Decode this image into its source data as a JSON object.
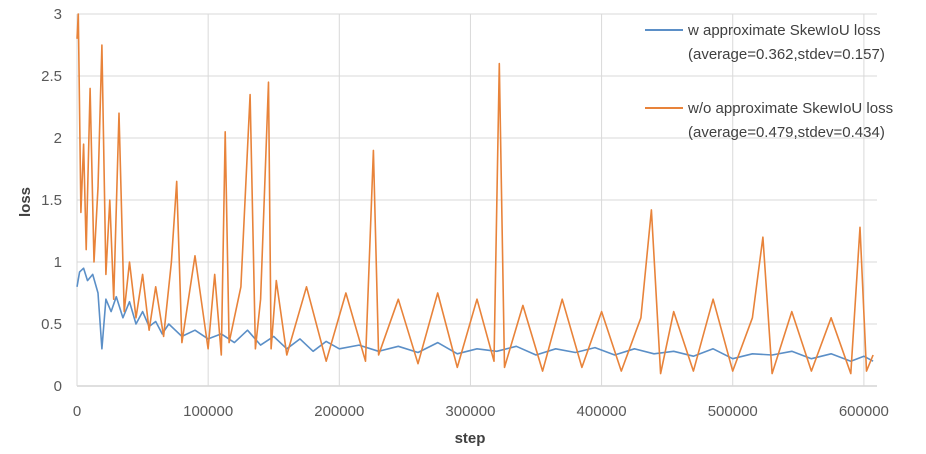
{
  "chart_data": {
    "type": "line",
    "xlabel": "step",
    "ylabel": "loss",
    "xlim": [
      0,
      610000
    ],
    "ylim": [
      0,
      3
    ],
    "x_ticks": [
      0,
      100000,
      200000,
      300000,
      400000,
      500000,
      600000
    ],
    "x_tick_labels": [
      "0",
      "100000",
      "200000",
      "300000",
      "400000",
      "500000",
      "600000"
    ],
    "y_ticks": [
      0,
      0.5,
      1,
      1.5,
      2,
      2.5,
      3
    ],
    "y_tick_labels": [
      "0",
      "0.5",
      "1",
      "1.5",
      "2",
      "2.5",
      "3"
    ],
    "grid": true,
    "legend_position": "top-right",
    "series": [
      {
        "name": "w approximate SkewIoU loss",
        "stats": "(average=0.362,stdev=0.157)",
        "color": "#5B8FC7",
        "x": [
          0,
          2000,
          5000,
          8000,
          12000,
          16000,
          19000,
          22000,
          26000,
          30000,
          35000,
          40000,
          45000,
          50000,
          55000,
          60000,
          65000,
          70000,
          80000,
          90000,
          100000,
          110000,
          120000,
          130000,
          140000,
          150000,
          160000,
          170000,
          180000,
          190000,
          200000,
          215000,
          230000,
          245000,
          260000,
          275000,
          290000,
          305000,
          320000,
          335000,
          350000,
          365000,
          380000,
          395000,
          410000,
          425000,
          440000,
          455000,
          470000,
          485000,
          500000,
          515000,
          530000,
          545000,
          560000,
          575000,
          590000,
          600000,
          607000
        ],
        "values": [
          0.8,
          0.92,
          0.95,
          0.85,
          0.9,
          0.75,
          0.3,
          0.7,
          0.6,
          0.72,
          0.55,
          0.68,
          0.5,
          0.6,
          0.48,
          0.52,
          0.42,
          0.5,
          0.4,
          0.45,
          0.38,
          0.42,
          0.35,
          0.45,
          0.33,
          0.4,
          0.3,
          0.38,
          0.28,
          0.36,
          0.3,
          0.33,
          0.28,
          0.32,
          0.27,
          0.35,
          0.26,
          0.3,
          0.28,
          0.32,
          0.25,
          0.3,
          0.27,
          0.31,
          0.25,
          0.3,
          0.26,
          0.28,
          0.24,
          0.3,
          0.22,
          0.26,
          0.25,
          0.28,
          0.22,
          0.26,
          0.2,
          0.24,
          0.2
        ]
      },
      {
        "name": "w/o approximate SkewIoU loss",
        "stats": "(average=0.479,stdev=0.434)",
        "color": "#E8833A",
        "x": [
          0,
          1000,
          3000,
          5000,
          7000,
          10000,
          13000,
          16000,
          19000,
          22000,
          25000,
          28000,
          32000,
          36000,
          40000,
          45000,
          50000,
          55000,
          60000,
          66000,
          72000,
          76000,
          80000,
          90000,
          100000,
          105000,
          110000,
          113000,
          116000,
          125000,
          132000,
          136000,
          140000,
          146000,
          148000,
          152000,
          160000,
          175000,
          190000,
          205000,
          220000,
          226000,
          230000,
          245000,
          260000,
          275000,
          290000,
          305000,
          318000,
          322000,
          326000,
          340000,
          355000,
          370000,
          385000,
          400000,
          415000,
          430000,
          438000,
          445000,
          455000,
          470000,
          485000,
          500000,
          515000,
          523000,
          530000,
          545000,
          560000,
          575000,
          590000,
          597000,
          602000,
          607000
        ],
        "values": [
          2.8,
          3.0,
          1.4,
          1.95,
          1.1,
          2.4,
          1.0,
          1.6,
          2.75,
          0.9,
          1.5,
          0.7,
          2.2,
          0.6,
          1.0,
          0.55,
          0.9,
          0.45,
          0.8,
          0.4,
          1.0,
          1.65,
          0.35,
          1.05,
          0.3,
          0.9,
          0.25,
          2.05,
          0.35,
          0.8,
          2.35,
          0.3,
          0.7,
          2.45,
          0.3,
          0.85,
          0.25,
          0.8,
          0.2,
          0.75,
          0.2,
          1.9,
          0.25,
          0.7,
          0.18,
          0.75,
          0.15,
          0.7,
          0.2,
          2.6,
          0.15,
          0.65,
          0.12,
          0.7,
          0.15,
          0.6,
          0.12,
          0.55,
          1.42,
          0.1,
          0.6,
          0.12,
          0.7,
          0.12,
          0.55,
          1.2,
          0.1,
          0.6,
          0.12,
          0.55,
          0.1,
          1.28,
          0.12,
          0.25
        ]
      }
    ]
  }
}
